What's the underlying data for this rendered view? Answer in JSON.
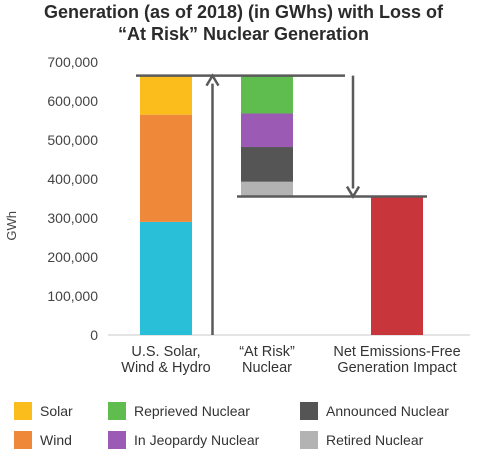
{
  "chart_data": {
    "type": "bar",
    "title_line1": "Generation (as of 2018) (in GWhs) with Loss of",
    "title_line2": "“At Risk” Nuclear Generation",
    "ylabel": "GWh",
    "ylim": [
      0,
      700000
    ],
    "y_ticks": [
      "0",
      "100,000",
      "200,000",
      "300,000",
      "400,000",
      "500,000",
      "600,000",
      "700,000"
    ],
    "y_tick_values": [
      0,
      100000,
      200000,
      300000,
      400000,
      500000,
      600000,
      700000
    ],
    "categories": [
      [
        "U.S. Solar,",
        "Wind & Hydro"
      ],
      [
        "“At Risk”",
        "Nuclear"
      ],
      [
        "Net Emissions-Free",
        "Generation Impact"
      ]
    ],
    "bars": [
      {
        "category_index": 0,
        "segments": [
          {
            "name": "Hydro",
            "color": "#29bfd8",
            "base": 0,
            "top": 290000
          },
          {
            "name": "Wind",
            "color": "#f0883a",
            "base": 290000,
            "top": 565000
          },
          {
            "name": "Solar",
            "color": "#fbbd1c",
            "base": 565000,
            "top": 665000
          }
        ]
      },
      {
        "category_index": 1,
        "segments": [
          {
            "name": "Retired Nuclear",
            "color": "#b3b3b3",
            "base": 355000,
            "top": 393000
          },
          {
            "name": "Announced Nuclear",
            "color": "#555555",
            "base": 393000,
            "top": 482000
          },
          {
            "name": "In Jeopardy Nuclear",
            "color": "#9b5ab3",
            "base": 482000,
            "top": 568000
          },
          {
            "name": "Reprieved Nuclear",
            "color": "#5ebd4e",
            "base": 568000,
            "top": 665000
          }
        ]
      },
      {
        "category_index": 2,
        "segments": [
          {
            "name": "Net",
            "color": "#c8353a",
            "base": 0,
            "top": 355000
          }
        ]
      }
    ],
    "reference_lines": [
      {
        "value": 665000,
        "from_category": 0,
        "to_category": 1
      },
      {
        "value": 355000,
        "from_category": 1,
        "to_category": 2
      }
    ],
    "arrows": [
      {
        "direction": "up",
        "from": 0,
        "to": 665000,
        "after_category": 0
      },
      {
        "direction": "down",
        "from": 665000,
        "to": 355000,
        "after_category": 1
      }
    ],
    "grid": false,
    "legend_position": "bottom",
    "legend": [
      {
        "label": "Solar",
        "color": "#fbbd1c"
      },
      {
        "label": "Reprieved Nuclear",
        "color": "#5ebd4e"
      },
      {
        "label": "Announced Nuclear",
        "color": "#555555"
      },
      {
        "label": "Wind",
        "color": "#f0883a"
      },
      {
        "label": "In Jeopardy Nuclear",
        "color": "#9b5ab3"
      },
      {
        "label": "Retired Nuclear",
        "color": "#b3b3b3"
      }
    ]
  }
}
